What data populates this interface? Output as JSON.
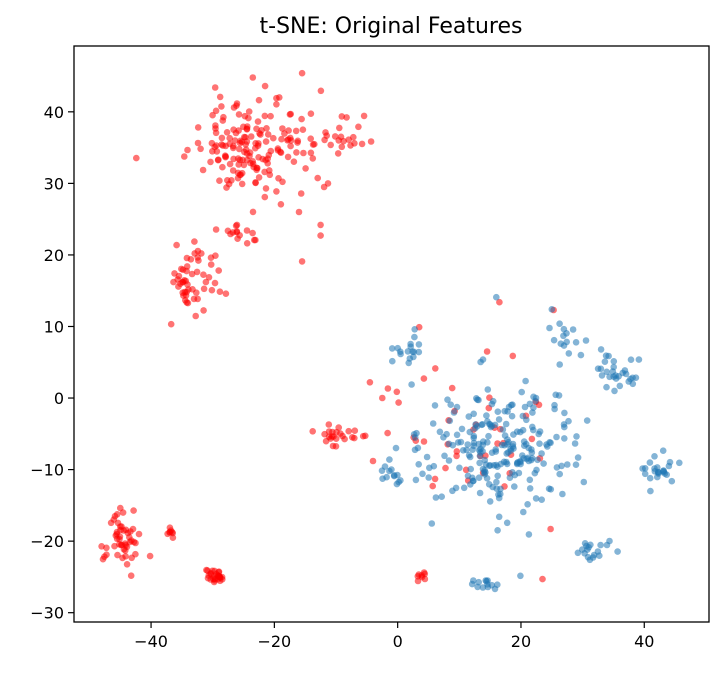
{
  "chart_data": {
    "type": "scatter",
    "title": "t-SNE: Original Features",
    "xlabel": "",
    "ylabel": "",
    "xlim": [
      -52.5,
      50.5
    ],
    "ylim": [
      -31.3,
      49.2
    ],
    "xticks": [
      -40,
      -20,
      0,
      20,
      40
    ],
    "yticks": [
      -30,
      -20,
      -10,
      0,
      10,
      20,
      30,
      40
    ],
    "grid": false,
    "legend": "none",
    "series": [
      {
        "color": "#ff0000",
        "opacity": 0.55,
        "clusters": [
          {
            "center": [
              -23,
              35
            ],
            "spread": [
              9,
              6.5
            ],
            "n": 170
          },
          {
            "center": [
              -9,
              36
            ],
            "spread": [
              3.5,
              3
            ],
            "n": 20
          },
          {
            "center": [
              -33,
              17
            ],
            "spread": [
              3.5,
              4.5
            ],
            "n": 55
          },
          {
            "center": [
              -25,
              23
            ],
            "spread": [
              3,
              1.8
            ],
            "n": 14
          },
          {
            "center": [
              -44.5,
              -20
            ],
            "spread": [
              2.6,
              4
            ],
            "n": 50
          },
          {
            "center": [
              -37,
              -18.8
            ],
            "spread": [
              0.8,
              0.8
            ],
            "n": 8
          },
          {
            "center": [
              -29.5,
              -25
            ],
            "spread": [
              1.3,
              1
            ],
            "n": 28
          },
          {
            "center": [
              -11,
              -5
            ],
            "spread": [
              3.5,
              1.4
            ],
            "n": 24
          },
          {
            "center": [
              13,
              -6
            ],
            "spread": [
              12,
              9
            ],
            "n": 40
          },
          {
            "center": [
              4,
              -24.8
            ],
            "spread": [
              1.3,
              0.5
            ],
            "n": 8
          }
        ],
        "points": [
          [
            -23.5,
            44.8
          ],
          [
            -15.5,
            45.4
          ],
          [
            -21.5,
            43.6
          ],
          [
            -15.5,
            19.1
          ],
          [
            -12.5,
            24.2
          ],
          [
            -12.5,
            22.7
          ],
          [
            -16,
            26
          ],
          [
            -4.5,
            2.2
          ],
          [
            3.5,
            9.9
          ],
          [
            14.5,
            6.5
          ],
          [
            25.3,
            12.3
          ],
          [
            16.5,
            13.4
          ],
          [
            24.8,
            -18.3
          ],
          [
            23.5,
            -25.3
          ],
          [
            -4,
            -8.8
          ],
          [
            -2.5,
            0
          ]
        ]
      },
      {
        "color": "#1f77b4",
        "opacity": 0.55,
        "clusters": [
          {
            "center": [
              17,
              -7
            ],
            "spread": [
              11,
              8
            ],
            "n": 230
          },
          {
            "center": [
              35.5,
              3.5
            ],
            "spread": [
              3,
              2.5
            ],
            "n": 28
          },
          {
            "center": [
              42,
              -10
            ],
            "spread": [
              3,
              2
            ],
            "n": 22
          },
          {
            "center": [
              32,
              -21
            ],
            "spread": [
              3,
              2
            ],
            "n": 18
          },
          {
            "center": [
              15,
              -26
            ],
            "spread": [
              5,
              1.3
            ],
            "n": 14
          },
          {
            "center": [
              1.5,
              7
            ],
            "spread": [
              3,
              2.5
            ],
            "n": 16
          },
          {
            "center": [
              27,
              8
            ],
            "spread": [
              3,
              2.5
            ],
            "n": 15
          },
          {
            "center": [
              -1,
              -10
            ],
            "spread": [
              2.5,
              3
            ],
            "n": 14
          }
        ],
        "points": [
          [
            16,
            14.1
          ],
          [
            25,
            12.4
          ],
          [
            41,
            -13
          ],
          [
            44,
            -9.5
          ],
          [
            33,
            6.8
          ]
        ]
      }
    ]
  }
}
